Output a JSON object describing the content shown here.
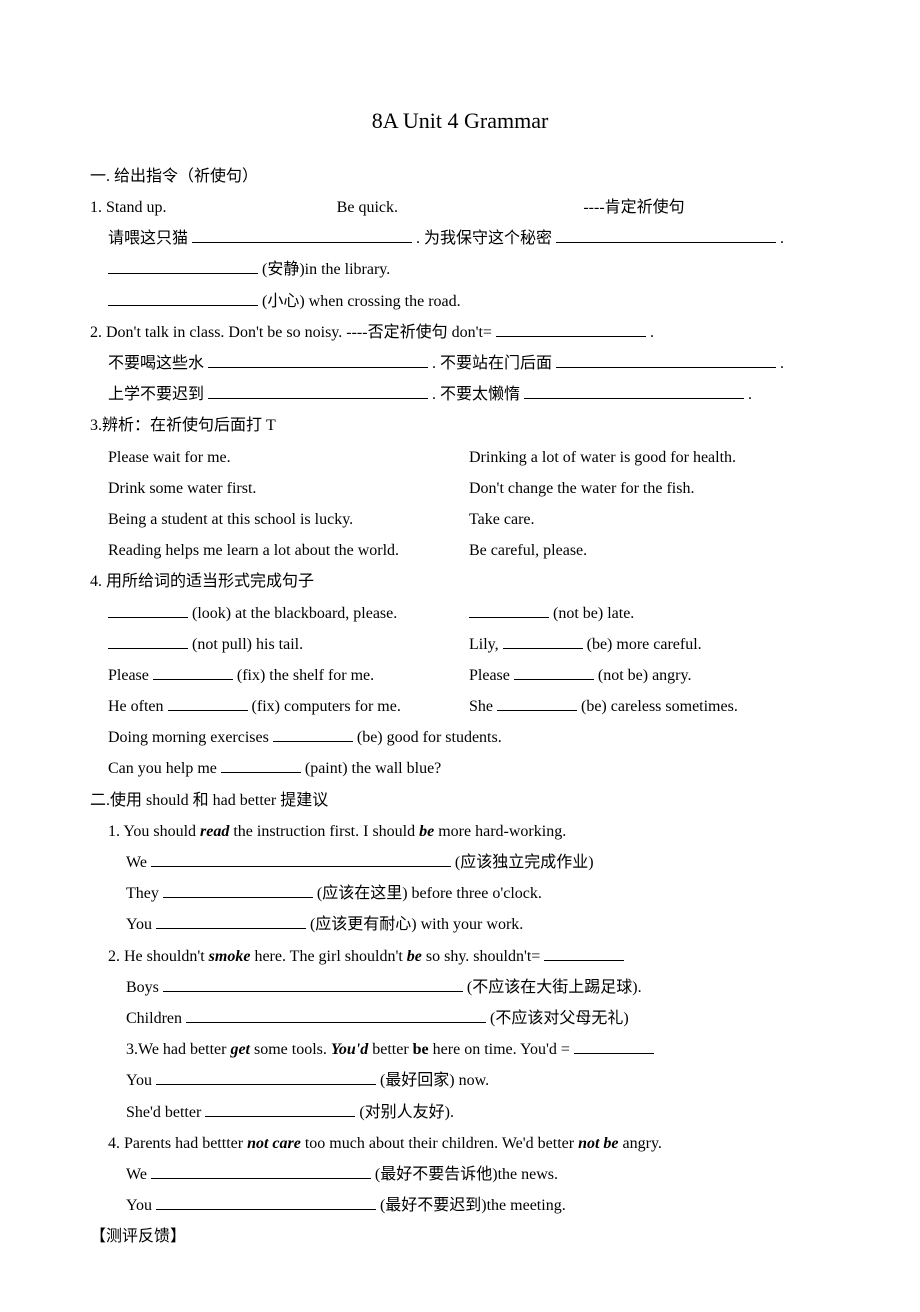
{
  "title": "8A Unit 4    Grammar",
  "s1": {
    "heading": "一. 给出指令（祈使句）",
    "l1a": "1. Stand up.",
    "l1b": "Be quick.",
    "l1c": "----肯定祈使句",
    "l2a": "请喂这只猫",
    "l2b": ".  为我保守这个秘密",
    "l2c": ".",
    "l3a": "(安静)in the library.",
    "l4a": "(小心) when crossing the road.",
    "l5a": "2. Don't talk in class.     Don't be so noisy.    ----否定祈使句    don't=",
    "l5b": ".",
    "l6a": "不要喝这些水",
    "l6b": ".  不要站在门后面",
    "l6c": ".",
    "l7a": "上学不要迟到",
    "l7b": ".  不要太懒惰",
    "l7c": ".",
    "l8": "3.辨析：在祈使句后面打 T",
    "l9a": "Please wait for me.",
    "l9b": "Drinking a lot of water is good for health.",
    "l10a": "Drink some water first.",
    "l10b": "Don't change the water for the fish.",
    "l11a": "Being a student at this school is lucky.",
    "l11b": "Take care.",
    "l12a": "Reading helps me learn a lot about the world.",
    "l12b": "Be careful, please.",
    "l13": "4. 用所给词的适当形式完成句子",
    "l14a": "(look) at the blackboard, please.",
    "l14b": "(not be) late.",
    "l15a": "(not pull) his tail.",
    "l15b": "Lily, ",
    "l15c": "(be) more careful.",
    "l16a": "Please ",
    "l16b": "(fix) the shelf for me.",
    "l16c": "Please",
    "l16d": "(not be) angry.",
    "l17a": "He often ",
    "l17b": "(fix) computers for me.",
    "l17c": "She ",
    "l17d": "(be) careless sometimes.",
    "l18a": "Doing morning exercises ",
    "l18b": "(be) good for students.",
    "l19a": "Can you help me ",
    "l19b": "(paint) the wall blue?"
  },
  "s2": {
    "heading": "二.使用 should 和 had better 提建议",
    "l1a": "1. You should ",
    "l1aw": "read",
    "l1b": " the instruction first.      I should ",
    "l1bw": "be",
    "l1c": " more hard-working.",
    "l2a": "We ",
    "l2b": "(应该独立完成作业)",
    "l3a": "They ",
    "l3b": "(应该在这里) before three o'clock.",
    "l4a": "You ",
    "l4b": "(应该更有耐心) with your work.",
    "l5a": "2. He shouldn't ",
    "l5aw": "smoke",
    "l5b": " here.       The girl shouldn't ",
    "l5bw": "be",
    "l5c": " so shy.     shouldn't=",
    "l6a": "Boys ",
    "l6b": "(不应该在大街上踢足球).",
    "l7a": "Children ",
    "l7b": "(不应该对父母无礼)",
    "l8a": "3.We had better ",
    "l8aw": "get",
    "l8b": " some tools.     ",
    "l8bw": "You'd",
    "l8c": " better ",
    "l8cw": "be",
    "l8d": " here on time.   You'd =",
    "l9a": "You ",
    "l9b": "(最好回家) now.",
    "l10a": "She'd better ",
    "l10b": "(对别人友好).",
    "l11a": "4. Parents had bettter ",
    "l11aw": "not care",
    "l11b": " too much about their children.     We'd better ",
    "l11bw": "not be",
    "l11c": " angry.",
    "l12a": "We ",
    "l12b": "(最好不要告诉他)the news.",
    "l13a": "You ",
    "l13b": "(最好不要迟到)the meeting."
  },
  "footer": "【测评反馈】"
}
